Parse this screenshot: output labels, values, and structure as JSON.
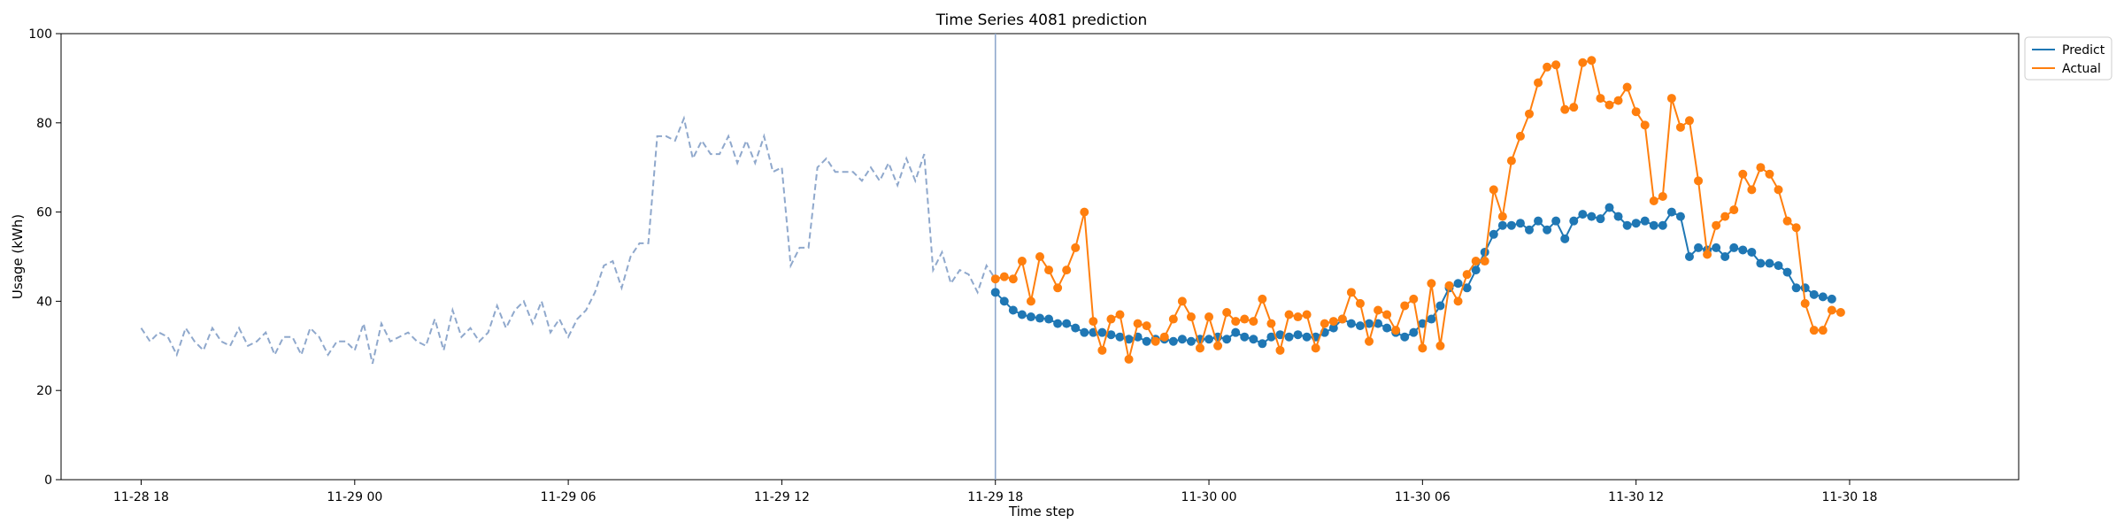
{
  "chart_data": {
    "type": "line",
    "title": "Time Series 4081 prediction",
    "xlabel": "Time step",
    "ylabel": "Usage (kWh)",
    "ylim": [
      0,
      100
    ],
    "yticks": [
      0,
      20,
      40,
      60,
      80,
      100
    ],
    "xlim_steps": [
      -9,
      211
    ],
    "xticks": [
      {
        "step": 0,
        "label": "11-28 18"
      },
      {
        "step": 24,
        "label": "11-29 00"
      },
      {
        "step": 48,
        "label": "11-29 06"
      },
      {
        "step": 72,
        "label": "11-29 12"
      },
      {
        "step": 96,
        "label": "11-29 18"
      },
      {
        "step": 120,
        "label": "11-30 00"
      },
      {
        "step": 144,
        "label": "11-30 06"
      },
      {
        "step": 168,
        "label": "11-30 12"
      },
      {
        "step": 192,
        "label": "11-30 18"
      }
    ],
    "forecast_start_step": 96,
    "legend_position": "top-right",
    "history": {
      "start_step": 0,
      "color": "#8fa8cc",
      "values": [
        34,
        31,
        33,
        32,
        28,
        34,
        31,
        29,
        34,
        31,
        30,
        34,
        30,
        31,
        33,
        28,
        32,
        32,
        28,
        34,
        32,
        28,
        31,
        31,
        29,
        35,
        26,
        35,
        31,
        32,
        33,
        31,
        30,
        36,
        29,
        38,
        32,
        34,
        31,
        33,
        39,
        34,
        38,
        40,
        35,
        40,
        33,
        36,
        32,
        36,
        38,
        42,
        48,
        49,
        43,
        50,
        53,
        53,
        77,
        77,
        76,
        81,
        72,
        76,
        73,
        73,
        77,
        71,
        76,
        71,
        77,
        69,
        70,
        48,
        52,
        52,
        70,
        72,
        69,
        69,
        69,
        67,
        70,
        67,
        71,
        66,
        72,
        67,
        73,
        47,
        51,
        44,
        47,
        46,
        42,
        48,
        45
      ]
    },
    "series": [
      {
        "name": "Predict",
        "color": "#1f77b4",
        "start_step": 96,
        "values": [
          42,
          40,
          38,
          37,
          36.5,
          36.2,
          36,
          35,
          35,
          34,
          33,
          33,
          33,
          32.5,
          32,
          31.5,
          32,
          31,
          31.5,
          31.5,
          31,
          31.5,
          31,
          31.5,
          31.5,
          32,
          31.5,
          33,
          32,
          31.5,
          30.5,
          32,
          32.5,
          32,
          32.5,
          32,
          32,
          33,
          34,
          36,
          35,
          34.5,
          35,
          35,
          34,
          33,
          32,
          33,
          35,
          36,
          39,
          43,
          44,
          43,
          47,
          51,
          55,
          57,
          57,
          57.5,
          56,
          58,
          56,
          58,
          54,
          58,
          59.5,
          59,
          58.5,
          61,
          59,
          57,
          57.5,
          58,
          57,
          57,
          60,
          59,
          50,
          52,
          51.5,
          52,
          50,
          52,
          51.5,
          51,
          48.5,
          48.5,
          48,
          46.5,
          43,
          43,
          41.5,
          41,
          40.5
        ]
      },
      {
        "name": "Actual",
        "color": "#ff7f0e",
        "start_step": 96,
        "values": [
          45,
          45.5,
          45,
          49,
          40,
          50,
          47,
          43,
          47,
          52,
          60,
          35.5,
          29,
          36,
          37,
          27,
          35,
          34.5,
          31,
          32,
          36,
          40,
          36.5,
          29.5,
          36.5,
          30,
          37.5,
          35.5,
          36,
          35.5,
          40.5,
          35,
          29,
          37,
          36.5,
          37,
          29.5,
          35,
          35.5,
          36,
          42,
          39.5,
          31,
          38,
          37,
          33.5,
          39,
          40.5,
          29.5,
          44,
          30,
          43.5,
          40,
          46,
          49,
          49,
          65,
          59,
          71.5,
          77,
          82,
          89,
          92.5,
          93,
          83,
          83.5,
          93.5,
          94,
          85.5,
          84,
          85,
          88,
          82.5,
          79.5,
          62.5,
          63.5,
          85.5,
          79,
          80.5,
          67,
          50.5,
          57,
          59,
          60.5,
          68.5,
          65,
          70,
          68.5,
          65,
          58,
          56.5,
          39.5,
          33.5,
          33.5,
          38,
          37.5
        ]
      }
    ]
  }
}
